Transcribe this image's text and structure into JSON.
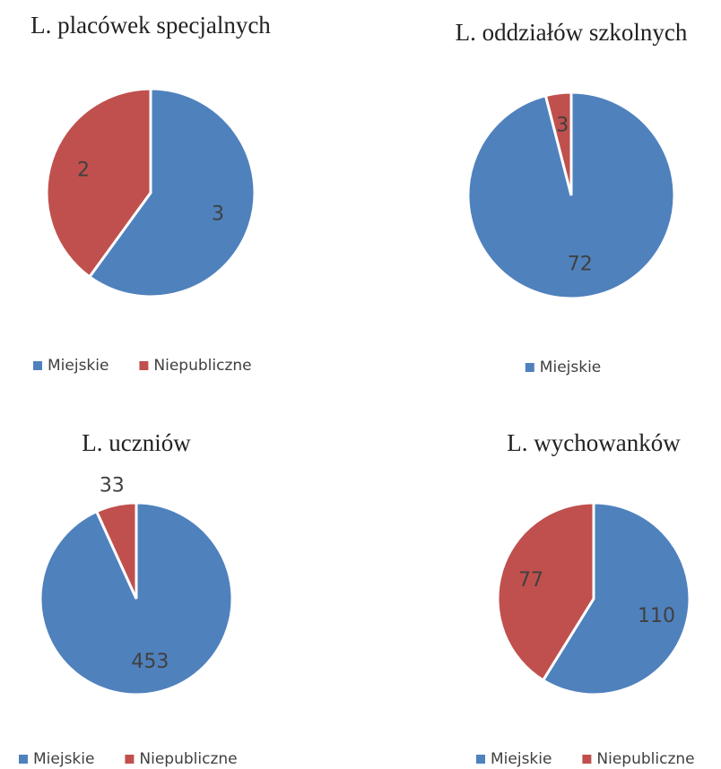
{
  "chart_data": [
    {
      "type": "pie",
      "title": "L. placówek specjalnych",
      "categories": [
        "Miejskie",
        "Niepubliczne"
      ],
      "values": [
        3,
        2
      ],
      "colors": [
        "#4f81bd",
        "#c0504d"
      ],
      "legend": "bottom"
    },
    {
      "type": "pie",
      "title": "L. oddziałów szkolnych",
      "categories": [
        "Miejskie",
        null
      ],
      "values": [
        72,
        3
      ],
      "colors": [
        "#4f81bd",
        "#c0504d"
      ],
      "legend": "bottom"
    },
    {
      "type": "pie",
      "title": "L. uczniów",
      "categories": [
        "Miejskie",
        "Niepubliczne"
      ],
      "values": [
        453,
        33
      ],
      "colors": [
        "#4f81bd",
        "#c0504d"
      ],
      "legend": "bottom",
      "data_label_position": [
        "inside",
        "outside"
      ]
    },
    {
      "type": "pie",
      "title": "L. wychowanków",
      "categories": [
        "Miejskie",
        "Niepubliczne"
      ],
      "values": [
        110,
        77
      ],
      "colors": [
        "#4f81bd",
        "#c0504d"
      ],
      "legend": "bottom"
    }
  ]
}
